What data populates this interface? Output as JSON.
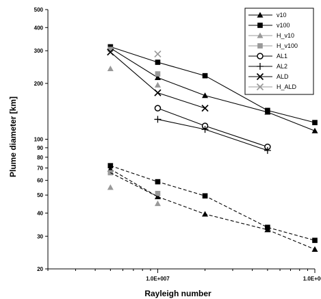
{
  "chart_data": {
    "type": "line",
    "xlabel": "Rayleigh number",
    "ylabel": "Plume diameter [km]",
    "x_scale": "log",
    "y_scale": "log",
    "xlim": [
      2000000,
      100000000
    ],
    "ylim": [
      20,
      500
    ],
    "x_tick_labels": [
      {
        "value": 10000000,
        "label": "1.0E+007"
      },
      {
        "value": 100000000,
        "label": "1.0E+008"
      }
    ],
    "y_tick_labels": [
      {
        "value": 20,
        "label": "20"
      },
      {
        "value": 30,
        "label": "30"
      },
      {
        "value": 40,
        "label": "40"
      },
      {
        "value": 50,
        "label": "50"
      },
      {
        "value": 60,
        "label": "60"
      },
      {
        "value": 70,
        "label": "70"
      },
      {
        "value": 80,
        "label": "80"
      },
      {
        "value": 90,
        "label": "90"
      },
      {
        "value": 100,
        "label": "100"
      },
      {
        "value": 200,
        "label": "200"
      },
      {
        "value": 300,
        "label": "300"
      },
      {
        "value": 400,
        "label": "400"
      },
      {
        "value": 500,
        "label": "500"
      }
    ],
    "legend_position": "top-right",
    "grid": false,
    "series": [
      {
        "name": "v10",
        "marker": "triangle",
        "color": "#000000",
        "dash": "solid",
        "points": [
          [
            5000000,
            310
          ],
          [
            10000000,
            215
          ],
          [
            20000000,
            172
          ],
          [
            50000000,
            140
          ],
          [
            100000000,
            111
          ]
        ]
      },
      {
        "name": "v100",
        "marker": "square",
        "color": "#000000",
        "dash": "solid",
        "points": [
          [
            5000000,
            315
          ],
          [
            10000000,
            260
          ],
          [
            20000000,
            220
          ],
          [
            50000000,
            143
          ],
          [
            100000000,
            123
          ]
        ]
      },
      {
        "name": "H_v10",
        "marker": "triangle",
        "color": "#999999",
        "dash": "none",
        "points": [
          [
            5000000,
            240
          ],
          [
            10000000,
            196
          ]
        ]
      },
      {
        "name": "H_v100",
        "marker": "square",
        "color": "#999999",
        "dash": "none",
        "points": [
          [
            5000000,
            305
          ],
          [
            10000000,
            225
          ]
        ]
      },
      {
        "name": "AL1",
        "marker": "circle",
        "color": "#000000",
        "dash": "solid",
        "points": [
          [
            10000000,
            147
          ],
          [
            20000000,
            118
          ],
          [
            50000000,
            91
          ]
        ]
      },
      {
        "name": "AL2",
        "marker": "plus",
        "color": "#000000",
        "dash": "solid",
        "points": [
          [
            10000000,
            128
          ],
          [
            20000000,
            113
          ],
          [
            50000000,
            87
          ]
        ]
      },
      {
        "name": "ALD",
        "marker": "x",
        "color": "#000000",
        "dash": "solid",
        "points": [
          [
            5000000,
            295
          ],
          [
            10000000,
            178
          ],
          [
            20000000,
            147
          ]
        ]
      },
      {
        "name": "H_ALD",
        "marker": "x",
        "color": "#999999",
        "dash": "none",
        "points": [
          [
            10000000,
            288
          ]
        ]
      },
      {
        "name": "",
        "marker": "triangle",
        "color": "#000000",
        "dash": "dashed",
        "points": [
          [
            5000000,
            69
          ],
          [
            10000000,
            49
          ],
          [
            20000000,
            39.5
          ],
          [
            50000000,
            32.5
          ],
          [
            100000000,
            25.5
          ]
        ]
      },
      {
        "name": "",
        "marker": "square",
        "color": "#000000",
        "dash": "dashed",
        "points": [
          [
            5000000,
            72
          ],
          [
            10000000,
            59
          ],
          [
            20000000,
            49.5
          ],
          [
            50000000,
            33.5
          ],
          [
            100000000,
            28.5
          ]
        ]
      },
      {
        "name": "",
        "marker": "triangle",
        "color": "#999999",
        "dash": "none",
        "points": [
          [
            5000000,
            55
          ],
          [
            10000000,
            45
          ]
        ]
      },
      {
        "name": "",
        "marker": "square",
        "color": "#999999",
        "dash": "none",
        "points": [
          [
            5000000,
            66
          ],
          [
            10000000,
            51
          ]
        ]
      },
      {
        "name": "",
        "marker": "none",
        "color": "#000000",
        "dash": "dashed",
        "points": [
          [
            5000000,
            66
          ],
          [
            10000000,
            49
          ]
        ]
      }
    ]
  }
}
